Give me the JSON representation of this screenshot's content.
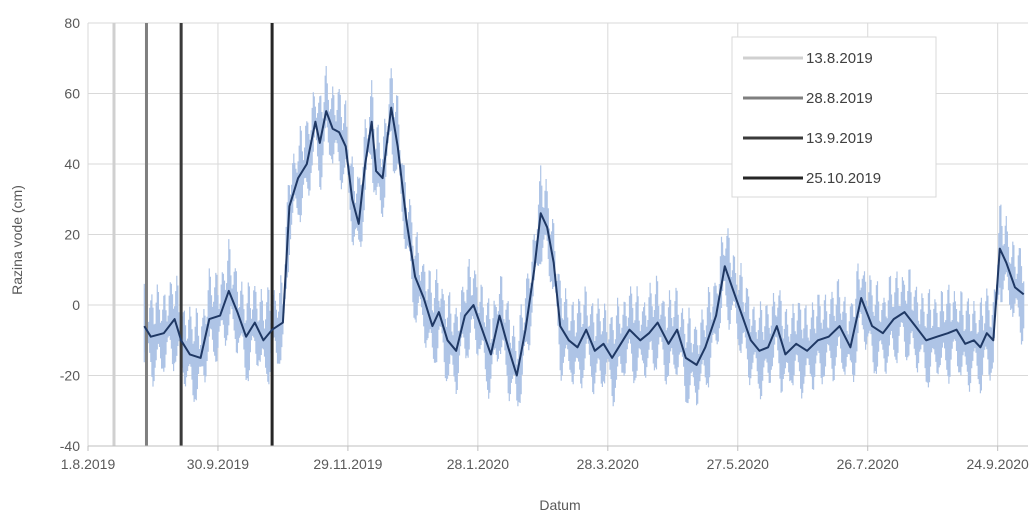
{
  "chart_data": {
    "type": "line",
    "xlabel": "Datum",
    "ylabel": "Razina vode (cm)",
    "ylim": [
      -40,
      80
    ],
    "yticks": [
      -40,
      -20,
      0,
      20,
      40,
      60,
      80
    ],
    "xlim": [
      "2019-08-01",
      "2020-10-08"
    ],
    "xticks": [
      {
        "date": "2019-08-01",
        "label": "1.8.2019"
      },
      {
        "date": "2019-09-30",
        "label": "30.9.2019"
      },
      {
        "date": "2019-11-29",
        "label": "29.11.2019"
      },
      {
        "date": "2020-01-28",
        "label": "28.1.2020"
      },
      {
        "date": "2020-03-28",
        "label": "28.3.2020"
      },
      {
        "date": "2020-05-27",
        "label": "27.5.2020"
      },
      {
        "date": "2020-07-26",
        "label": "26.7.2020"
      },
      {
        "date": "2020-09-24",
        "label": "24.9.2020"
      }
    ],
    "grid": "both",
    "legend_position": "top-right",
    "colors": {
      "band": "#aec4e6",
      "mean": "#1f3864",
      "grid": "#d9d9d9"
    },
    "vertical_markers": [
      {
        "name": "13.8.2019",
        "date": "2019-08-13",
        "color": "#d0d0d0"
      },
      {
        "name": "28.8.2019",
        "date": "2019-08-28",
        "color": "#7f7f7f"
      },
      {
        "name": "13.9.2019",
        "date": "2019-09-13",
        "color": "#3a3a3a"
      },
      {
        "name": "25.10.2019",
        "date": "2019-10-25",
        "color": "#262626"
      }
    ],
    "series": [
      {
        "kind": "mean",
        "dates": [
          "2019-08-27",
          "2019-08-30",
          "2019-09-05",
          "2019-09-10",
          "2019-09-13",
          "2019-09-17",
          "2019-09-22",
          "2019-09-26",
          "2019-10-01",
          "2019-10-05",
          "2019-10-09",
          "2019-10-13",
          "2019-10-17",
          "2019-10-21",
          "2019-10-25",
          "2019-10-30",
          "2019-11-02",
          "2019-11-06",
          "2019-11-10",
          "2019-11-14",
          "2019-11-16",
          "2019-11-19",
          "2019-11-22",
          "2019-11-25",
          "2019-11-28",
          "2019-12-01",
          "2019-12-04",
          "2019-12-07",
          "2019-12-10",
          "2019-12-12",
          "2019-12-15",
          "2019-12-19",
          "2019-12-22",
          "2019-12-26",
          "2019-12-30",
          "2020-01-03",
          "2020-01-07",
          "2020-01-10",
          "2020-01-14",
          "2020-01-18",
          "2020-01-22",
          "2020-01-26",
          "2020-01-30",
          "2020-02-03",
          "2020-02-07",
          "2020-02-11",
          "2020-02-15",
          "2020-02-19",
          "2020-02-23",
          "2020-02-26",
          "2020-02-29",
          "2020-03-03",
          "2020-03-06",
          "2020-03-10",
          "2020-03-14",
          "2020-03-18",
          "2020-03-22",
          "2020-03-26",
          "2020-03-30",
          "2020-04-03",
          "2020-04-07",
          "2020-04-12",
          "2020-04-16",
          "2020-04-20",
          "2020-04-25",
          "2020-04-29",
          "2020-05-03",
          "2020-05-08",
          "2020-05-12",
          "2020-05-17",
          "2020-05-21",
          "2020-05-25",
          "2020-05-29",
          "2020-06-02",
          "2020-06-06",
          "2020-06-10",
          "2020-06-14",
          "2020-06-18",
          "2020-06-23",
          "2020-06-28",
          "2020-07-03",
          "2020-07-08",
          "2020-07-13",
          "2020-07-18",
          "2020-07-23",
          "2020-07-28",
          "2020-08-02",
          "2020-08-07",
          "2020-08-12",
          "2020-08-17",
          "2020-08-22",
          "2020-08-27",
          "2020-09-01",
          "2020-09-05",
          "2020-09-09",
          "2020-09-13",
          "2020-09-16",
          "2020-09-19",
          "2020-09-22",
          "2020-09-25",
          "2020-09-28",
          "2020-10-02",
          "2020-10-06"
        ],
        "values": [
          -6,
          -9,
          -8,
          -4,
          -10,
          -14,
          -15,
          -4,
          -3,
          4,
          -2,
          -9,
          -5,
          -10,
          -7,
          -5,
          28,
          36,
          40,
          52,
          46,
          55,
          50,
          49,
          45,
          30,
          23,
          40,
          52,
          38,
          36,
          56,
          45,
          24,
          8,
          2,
          -6,
          -2,
          -10,
          -13,
          -3,
          0,
          -7,
          -14,
          -3,
          -12,
          -20,
          -7,
          10,
          26,
          22,
          12,
          -6,
          -10,
          -12,
          -7,
          -13,
          -11,
          -15,
          -11,
          -7,
          -10,
          -8,
          -5,
          -11,
          -7,
          -15,
          -17,
          -12,
          -3,
          11,
          4,
          -3,
          -10,
          -13,
          -12,
          -6,
          -14,
          -11,
          -13,
          -10,
          -9,
          -6,
          -12,
          2,
          -6,
          -8,
          -4,
          -2,
          -6,
          -10,
          -9,
          -8,
          -7,
          -11,
          -10,
          -12,
          -8,
          -10,
          16,
          12,
          5,
          3
        ]
      }
    ]
  }
}
